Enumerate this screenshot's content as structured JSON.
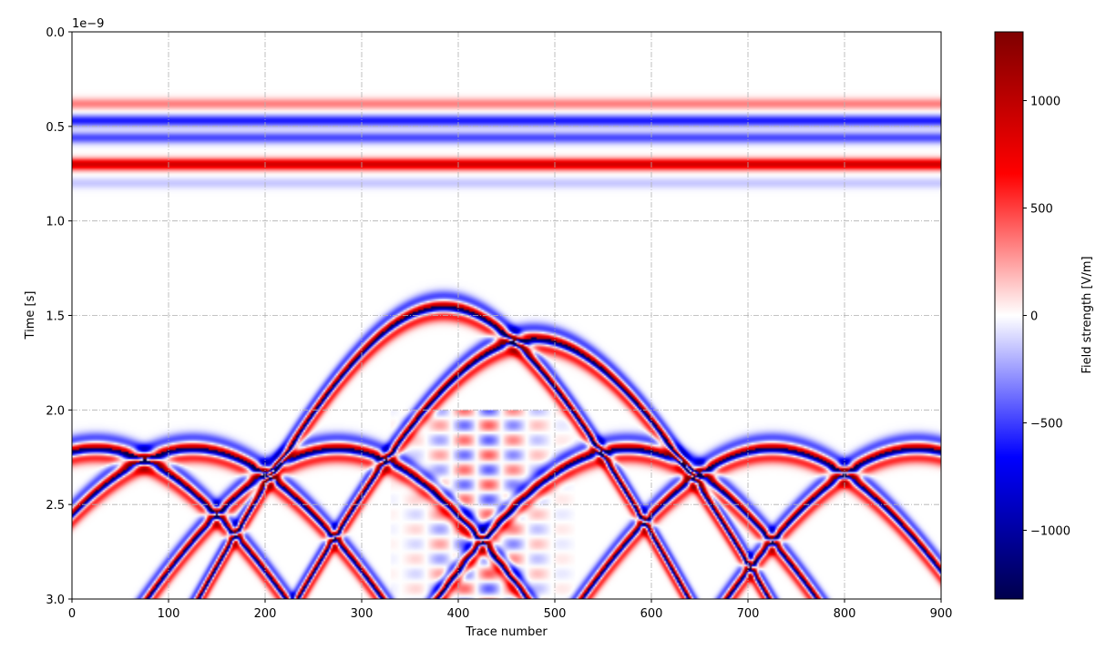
{
  "chart_data": {
    "type": "heatmap",
    "title": "",
    "xlabel": "Trace number",
    "ylabel": "Time [s]",
    "x_range": [
      0,
      900
    ],
    "y_range": [
      0,
      3e-09
    ],
    "y_inverted": true,
    "y_offset_label": "1e−9",
    "x_ticks": [
      0,
      100,
      200,
      300,
      400,
      500,
      600,
      700,
      800,
      900
    ],
    "x_tick_labels": [
      "0",
      "100",
      "200",
      "300",
      "400",
      "500",
      "600",
      "700",
      "800",
      "900"
    ],
    "y_ticks": [
      0,
      0.5,
      1.0,
      1.5,
      2.0,
      2.5,
      3.0
    ],
    "y_tick_labels": [
      "0.0",
      "0.5",
      "1.0",
      "1.5",
      "2.0",
      "2.5",
      "3.0"
    ],
    "grid": true,
    "grid_style": "dash-dot",
    "colormap": "seismic",
    "colorbar": {
      "label": "Field strength [V/m]",
      "range": [
        -1320,
        1320
      ],
      "ticks": [
        -1000,
        -500,
        0,
        500,
        1000
      ],
      "tick_labels": [
        "−1000",
        "−500",
        "0",
        "500",
        "1000"
      ]
    },
    "features": {
      "direct_wave_bands": [
        {
          "time": 0.38,
          "polarity": 0.28
        },
        {
          "time": 0.47,
          "polarity": -0.5
        },
        {
          "time": 0.56,
          "polarity": -0.4
        },
        {
          "time": 0.7,
          "polarity": 0.75
        },
        {
          "time": 0.8,
          "polarity": -0.12
        }
      ],
      "hyperbola_apexes": [
        {
          "trace": 25,
          "time": 2.2
        },
        {
          "trace": 125,
          "time": 2.2
        },
        {
          "trace": 275,
          "time": 2.2
        },
        {
          "trace": 575,
          "time": 2.2
        },
        {
          "trace": 725,
          "time": 2.2
        },
        {
          "trace": 875,
          "time": 2.2
        },
        {
          "trace": 385,
          "time": 1.45
        },
        {
          "trace": 478,
          "time": 1.62
        }
      ],
      "crossing_points": [
        {
          "trace": 75,
          "time": 2.35
        },
        {
          "trace": 200,
          "time": 2.55
        },
        {
          "trace": 355,
          "time": 2.6
        },
        {
          "trace": 500,
          "time": 2.55
        },
        {
          "trace": 650,
          "time": 2.55
        },
        {
          "trace": 800,
          "time": 2.55
        }
      ]
    }
  }
}
